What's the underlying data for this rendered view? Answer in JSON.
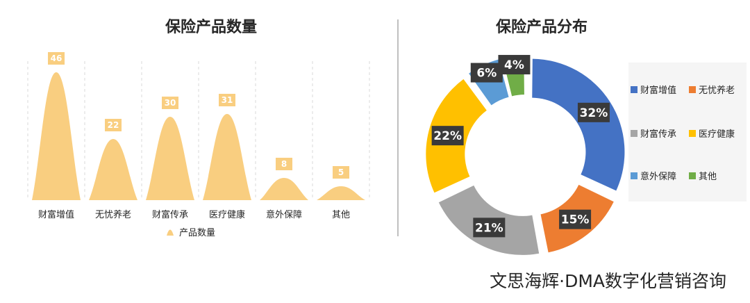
{
  "chart_data": [
    {
      "type": "bar",
      "title": "保险产品数量",
      "categories": [
        "财富增值",
        "无忧养老",
        "财富传承",
        "医疗健康",
        "意外保障",
        "其他"
      ],
      "series": [
        {
          "name": "产品数量",
          "values": [
            46,
            22,
            30,
            31,
            8,
            5
          ],
          "color": "#F9CE80"
        }
      ],
      "value_labels": [
        "46",
        "22",
        "30",
        "31",
        "8",
        "5"
      ],
      "ylim": [
        0,
        46
      ],
      "legend": "bottom",
      "grid": false
    },
    {
      "type": "pie",
      "title": "保险产品分布",
      "donut": true,
      "categories": [
        "财富增值",
        "无忧养老",
        "财富传承",
        "医疗健康",
        "意外保障",
        "其他"
      ],
      "values": [
        32,
        15,
        21,
        22,
        6,
        4
      ],
      "labels": [
        "32%",
        "15%",
        "21%",
        "22%",
        "6%",
        "4%"
      ],
      "colors": [
        "#4472C4",
        "#ED7D31",
        "#A5A5A5",
        "#FFC000",
        "#5B9BD5",
        "#70AD47"
      ],
      "legend": "right"
    }
  ],
  "watermark": "文思海辉·DMA数字化营销咨询"
}
